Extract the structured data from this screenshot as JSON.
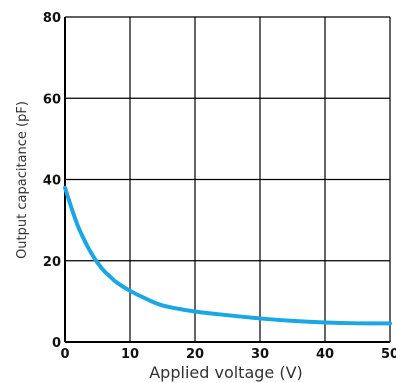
{
  "chart_data": {
    "type": "line",
    "title": "",
    "xlabel": "Applied  voltage  (V)",
    "ylabel": "Output  capacitance  (pF)",
    "xlim": [
      0,
      50
    ],
    "ylim": [
      0,
      80
    ],
    "x_ticks": [
      0,
      10,
      20,
      30,
      40,
      50
    ],
    "y_ticks": [
      0,
      20,
      40,
      60,
      80
    ],
    "x_tick_labels": [
      "0",
      "10",
      "20",
      "30",
      "40",
      "50"
    ],
    "y_tick_labels": [
      "0",
      "20",
      "40",
      "60",
      "80"
    ],
    "grid": true,
    "legend": "none",
    "series": [
      {
        "color": "#1aa7e4",
        "x": [
          0,
          1,
          2,
          3,
          4,
          5,
          6,
          7,
          8,
          10,
          12,
          15,
          20,
          25,
          30,
          35,
          40,
          45,
          50
        ],
        "y": [
          38,
          33,
          28.5,
          25,
          22,
          19.5,
          17.5,
          16,
          14.6,
          12.6,
          11,
          9,
          7.5,
          6.6,
          5.8,
          5.2,
          4.8,
          4.6,
          4.6
        ]
      }
    ]
  }
}
